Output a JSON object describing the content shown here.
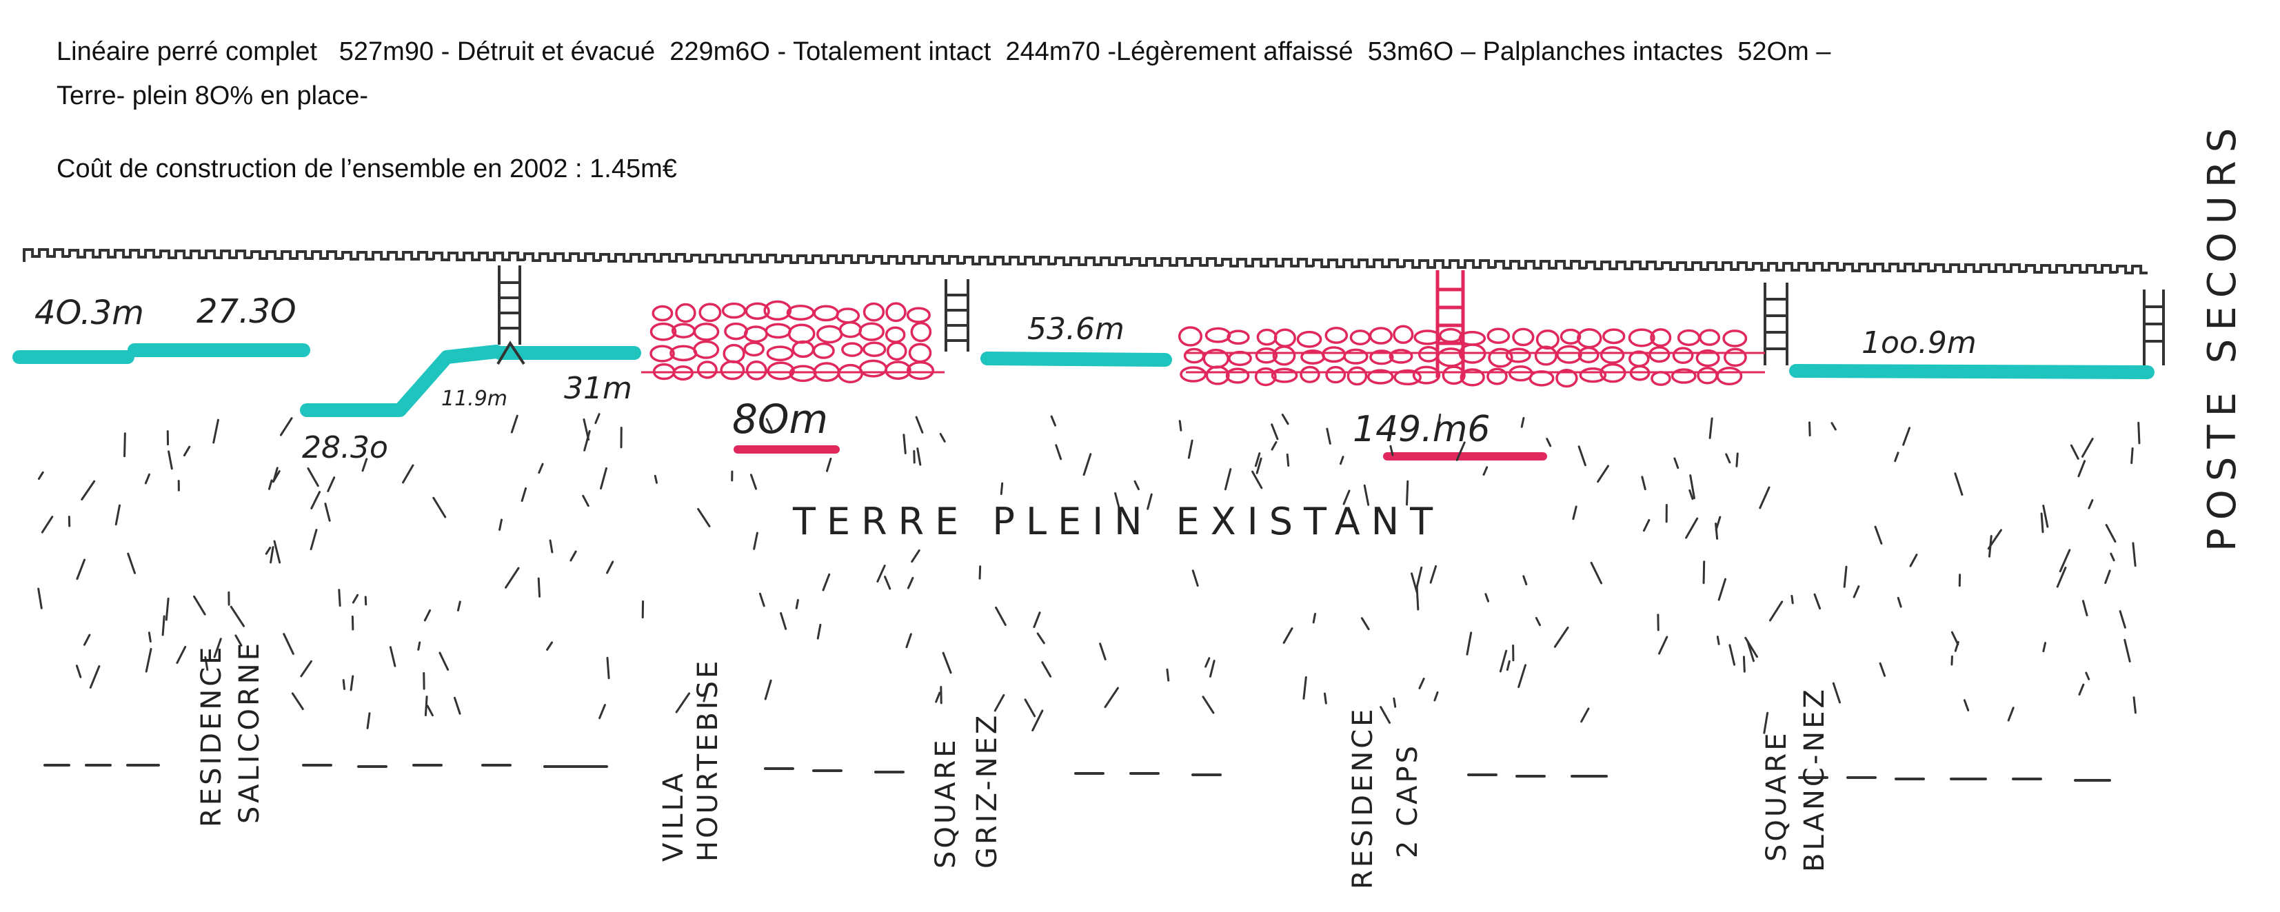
{
  "header": {
    "line1": "Linéaire perré complet   527m90 - Détruit et évacué  229m6O - Totalement intact  244m70 -Légèrement affaissé  53m6O – Palplanches intactes  52Om –",
    "line2": "Terre- plein 8O% en place-",
    "line3": "Coût de construction de l’ensemble en 2002 : 1.45m€"
  },
  "segments": {
    "s1": "4O.3m",
    "s2": "27.3O",
    "s3": "28.3o",
    "s4": "11.9m",
    "s5": "31m",
    "s6": "53.6m",
    "s7": "1oo.9m"
  },
  "damaged": {
    "d1": "8Om",
    "d2": "149.m6"
  },
  "area_label": "TERRE PLEIN EXISTANT",
  "side_label": "POSTE SECOURS",
  "places": {
    "p1a": "RESIDENCE",
    "p1b": "SALICORNE",
    "p2a": "VILLA",
    "p2b": "HOURTEBISE",
    "p3a": "SQUARE",
    "p3b": "GRIZ-NEZ",
    "p4a": "RESIDENCE",
    "p4b": "2 CAPS",
    "p5a": "SQUARE",
    "p5b": "BLANC-NEZ"
  },
  "colors": {
    "intact": "#1fc4bf",
    "destroyed": "#e0285c",
    "ink": "#222222"
  }
}
